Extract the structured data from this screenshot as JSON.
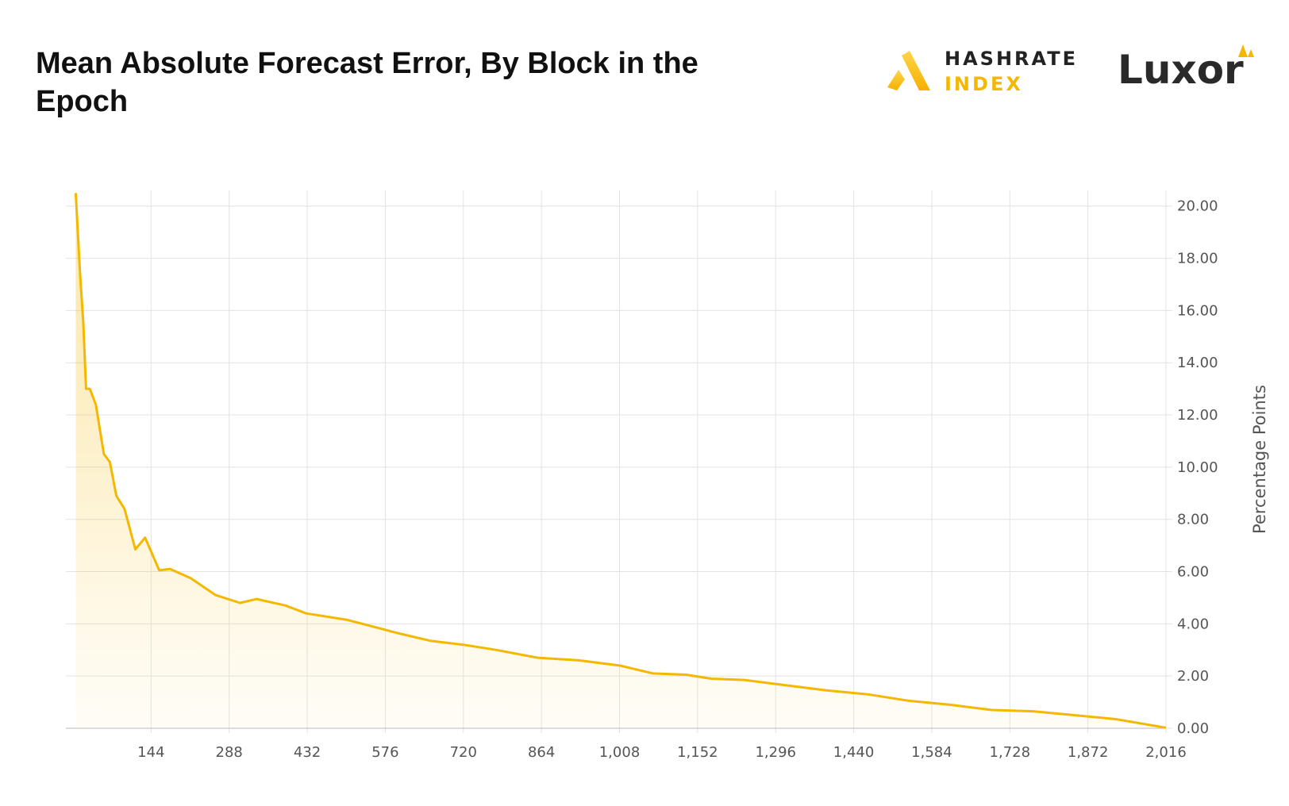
{
  "title": "Mean Absolute Forecast Error, By Block in the Epoch",
  "logos": {
    "hashrate_top": "HASHRATE",
    "hashrate_bottom": "INDEX",
    "luxor": "Luxor"
  },
  "chart_data": {
    "type": "line",
    "ylabel": "Percentage Points",
    "x": [
      5,
      13,
      19,
      24,
      31,
      42,
      57,
      68,
      80,
      95,
      115,
      133,
      159,
      179,
      217,
      263,
      308,
      339,
      392,
      430,
      506,
      552,
      598,
      659,
      720,
      781,
      857,
      933,
      1009,
      1070,
      1131,
      1177,
      1238,
      1314,
      1390,
      1466,
      1542,
      1618,
      1695,
      1771,
      1847,
      1923,
      2016
    ],
    "series": [
      {
        "name": "Mean Absolute Forecast Error",
        "color": "#f5b800",
        "values": [
          20.5,
          17.4,
          15.5,
          13.0,
          13.0,
          12.4,
          10.5,
          10.2,
          8.9,
          8.4,
          6.85,
          7.3,
          6.05,
          6.1,
          5.75,
          5.1,
          4.8,
          4.95,
          4.7,
          4.4,
          4.15,
          3.9,
          3.65,
          3.35,
          3.2,
          3.0,
          2.7,
          2.6,
          2.4,
          2.1,
          2.05,
          1.9,
          1.85,
          1.65,
          1.45,
          1.3,
          1.05,
          0.9,
          0.7,
          0.65,
          0.5,
          0.35,
          0.02
        ]
      }
    ],
    "xlim": [
      0,
      2016
    ],
    "ylim": [
      0,
      20.6
    ],
    "xticks": [
      144,
      288,
      432,
      576,
      720,
      864,
      {
        "value": 1008,
        "label": "1,008"
      },
      {
        "value": 1152,
        "label": "1,152"
      },
      {
        "value": 1296,
        "label": "1,296"
      },
      {
        "value": 1440,
        "label": "1,440"
      },
      {
        "value": 1584,
        "label": "1,584"
      },
      {
        "value": 1728,
        "label": "1,728"
      },
      {
        "value": 1872,
        "label": "1,872"
      },
      {
        "value": 2016,
        "label": "2,016"
      }
    ],
    "yticks": [
      {
        "value": 0,
        "label": "0.00"
      },
      {
        "value": 2,
        "label": "2.00"
      },
      {
        "value": 4,
        "label": "4.00"
      },
      {
        "value": 6,
        "label": "6.00"
      },
      {
        "value": 8,
        "label": "8.00"
      },
      {
        "value": 10,
        "label": "10.00"
      },
      {
        "value": 12,
        "label": "12.00"
      },
      {
        "value": 14,
        "label": "14.00"
      },
      {
        "value": 16,
        "label": "16.00"
      },
      {
        "value": 18,
        "label": "18.00"
      },
      {
        "value": 20,
        "label": "20.00"
      }
    ],
    "grid": true
  }
}
